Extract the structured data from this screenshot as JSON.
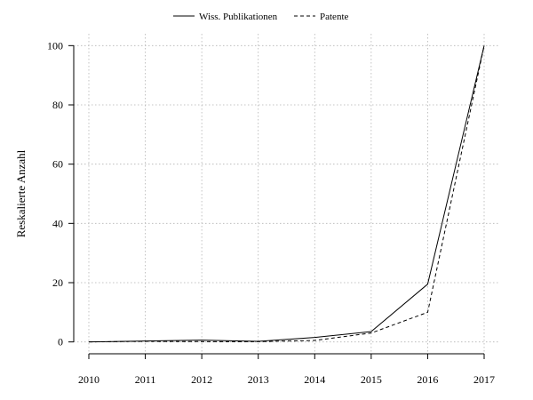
{
  "chart_data": {
    "type": "line",
    "title": "",
    "xlabel": "",
    "ylabel": "Reskalierte Anzahl",
    "x": [
      "2010",
      "2011",
      "2012",
      "2013",
      "2014",
      "2015",
      "2016",
      "2017"
    ],
    "xlim": [
      2010,
      2017
    ],
    "ylim": [
      -4,
      104
    ],
    "yticks": [
      0,
      20,
      40,
      60,
      80,
      100
    ],
    "grid": true,
    "legend_position": "top-center",
    "series": [
      {
        "name": "Wiss. Publikationen",
        "style": "solid",
        "values": [
          0,
          0.3,
          0.6,
          0.2,
          1.5,
          3.5,
          19.5,
          100
        ]
      },
      {
        "name": "Patente",
        "style": "dashed",
        "values": [
          0,
          0.2,
          0.1,
          0.1,
          0.5,
          3,
          10,
          100
        ]
      }
    ]
  }
}
